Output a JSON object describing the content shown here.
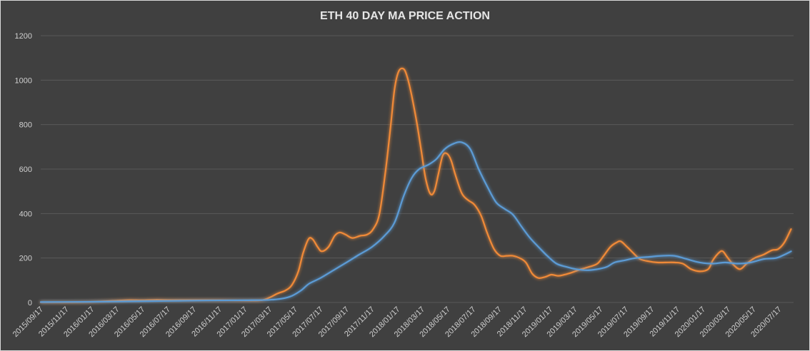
{
  "chart_data": {
    "type": "line",
    "title": "ETH 40 DAY MA PRICE ACTION",
    "xlabel": "",
    "ylabel": "",
    "ylim": [
      0,
      1200
    ],
    "y_ticks": [
      "0",
      "200",
      "400",
      "600",
      "800",
      "1000",
      "1200"
    ],
    "x_tick_labels": [
      "2015/09/17",
      "2015/11/17",
      "2016/01/17",
      "2016/03/17",
      "2016/05/17",
      "2016/07/17",
      "2016/09/17",
      "2016/11/17",
      "2017/01/17",
      "2017/03/17",
      "2017/05/17",
      "2017/07/17",
      "2017/09/17",
      "2017/11/17",
      "2018/01/17",
      "2018/03/17",
      "2018/05/17",
      "2018/07/17",
      "2018/09/17",
      "2018/11/17",
      "2019/01/17",
      "2019/03/17",
      "2019/05/17",
      "2019/07/17",
      "2019/09/17",
      "2019/11/17",
      "2020/01/17",
      "2020/03/17",
      "2020/05/17",
      "2020/07/17"
    ],
    "grid": true,
    "legend": "none",
    "series": [
      {
        "color": "#f08a38",
        "points": [
          [
            "2015/09/17",
            1
          ],
          [
            "2016/01/01",
            2
          ],
          [
            "2016/03/17",
            8
          ],
          [
            "2016/04/17",
            11
          ],
          [
            "2016/05/17",
            10
          ],
          [
            "2016/06/17",
            12
          ],
          [
            "2016/07/17",
            11
          ],
          [
            "2016/10/17",
            11
          ],
          [
            "2017/01/17",
            9
          ],
          [
            "2017/02/25",
            10
          ],
          [
            "2017/03/17",
            22
          ],
          [
            "2017/04/05",
            40
          ],
          [
            "2017/04/25",
            55
          ],
          [
            "2017/05/10",
            80
          ],
          [
            "2017/05/25",
            140
          ],
          [
            "2017/06/05",
            220
          ],
          [
            "2017/06/18",
            285
          ],
          [
            "2017/06/28",
            285
          ],
          [
            "2017/07/10",
            250
          ],
          [
            "2017/07/20",
            230
          ],
          [
            "2017/08/05",
            250
          ],
          [
            "2017/08/20",
            300
          ],
          [
            "2017/09/01",
            315
          ],
          [
            "2017/09/15",
            305
          ],
          [
            "2017/10/01",
            290
          ],
          [
            "2017/10/20",
            300
          ],
          [
            "2017/11/05",
            305
          ],
          [
            "2017/11/20",
            330
          ],
          [
            "2017/12/05",
            400
          ],
          [
            "2017/12/20",
            600
          ],
          [
            "2018/01/01",
            800
          ],
          [
            "2018/01/10",
            960
          ],
          [
            "2018/01/20",
            1040
          ],
          [
            "2018/02/01",
            1050
          ],
          [
            "2018/02/10",
            1010
          ],
          [
            "2018/02/20",
            930
          ],
          [
            "2018/03/05",
            800
          ],
          [
            "2018/03/15",
            680
          ],
          [
            "2018/03/25",
            560
          ],
          [
            "2018/04/05",
            490
          ],
          [
            "2018/04/15",
            500
          ],
          [
            "2018/04/25",
            580
          ],
          [
            "2018/05/05",
            660
          ],
          [
            "2018/05/15",
            670
          ],
          [
            "2018/05/25",
            640
          ],
          [
            "2018/06/05",
            570
          ],
          [
            "2018/06/20",
            490
          ],
          [
            "2018/07/05",
            460
          ],
          [
            "2018/07/20",
            440
          ],
          [
            "2018/08/05",
            390
          ],
          [
            "2018/08/20",
            310
          ],
          [
            "2018/09/05",
            240
          ],
          [
            "2018/09/20",
            210
          ],
          [
            "2018/10/05",
            210
          ],
          [
            "2018/10/20",
            210
          ],
          [
            "2018/11/05",
            200
          ],
          [
            "2018/11/20",
            180
          ],
          [
            "2018/12/05",
            130
          ],
          [
            "2018/12/20",
            110
          ],
          [
            "2019/01/05",
            115
          ],
          [
            "2019/01/20",
            125
          ],
          [
            "2019/02/05",
            120
          ],
          [
            "2019/02/20",
            125
          ],
          [
            "2019/03/10",
            135
          ],
          [
            "2019/04/01",
            150
          ],
          [
            "2019/04/20",
            160
          ],
          [
            "2019/05/10",
            175
          ],
          [
            "2019/05/25",
            210
          ],
          [
            "2019/06/10",
            250
          ],
          [
            "2019/06/25",
            270
          ],
          [
            "2019/07/05",
            275
          ],
          [
            "2019/07/20",
            250
          ],
          [
            "2019/08/05",
            220
          ],
          [
            "2019/08/20",
            195
          ],
          [
            "2019/09/10",
            185
          ],
          [
            "2019/09/30",
            180
          ],
          [
            "2019/10/20",
            180
          ],
          [
            "2019/11/10",
            180
          ],
          [
            "2019/11/30",
            175
          ],
          [
            "2019/12/20",
            150
          ],
          [
            "2020/01/10",
            140
          ],
          [
            "2020/01/30",
            150
          ],
          [
            "2020/02/10",
            190
          ],
          [
            "2020/02/25",
            225
          ],
          [
            "2020/03/05",
            230
          ],
          [
            "2020/03/15",
            205
          ],
          [
            "2020/03/30",
            170
          ],
          [
            "2020/04/15",
            150
          ],
          [
            "2020/05/01",
            175
          ],
          [
            "2020/05/20",
            200
          ],
          [
            "2020/06/10",
            215
          ],
          [
            "2020/06/30",
            235
          ],
          [
            "2020/07/15",
            240
          ],
          [
            "2020/07/30",
            270
          ],
          [
            "2020/08/15",
            330
          ]
        ]
      },
      {
        "color": "#5b9bd5",
        "points": [
          [
            "2015/09/17",
            2
          ],
          [
            "2016/01/01",
            3
          ],
          [
            "2016/04/17",
            5
          ],
          [
            "2016/07/17",
            7
          ],
          [
            "2016/10/17",
            9
          ],
          [
            "2017/01/17",
            10
          ],
          [
            "2017/03/17",
            12
          ],
          [
            "2017/04/17",
            18
          ],
          [
            "2017/05/10",
            30
          ],
          [
            "2017/06/01",
            55
          ],
          [
            "2017/06/20",
            85
          ],
          [
            "2017/07/17",
            110
          ],
          [
            "2017/08/17",
            145
          ],
          [
            "2017/09/17",
            180
          ],
          [
            "2017/10/17",
            215
          ],
          [
            "2017/11/17",
            250
          ],
          [
            "2017/12/17",
            300
          ],
          [
            "2018/01/10",
            360
          ],
          [
            "2018/02/01",
            480
          ],
          [
            "2018/02/20",
            560
          ],
          [
            "2018/03/10",
            600
          ],
          [
            "2018/04/01",
            620
          ],
          [
            "2018/04/20",
            645
          ],
          [
            "2018/05/10",
            690
          ],
          [
            "2018/06/01",
            715
          ],
          [
            "2018/06/20",
            720
          ],
          [
            "2018/07/10",
            690
          ],
          [
            "2018/07/30",
            600
          ],
          [
            "2018/08/20",
            520
          ],
          [
            "2018/09/10",
            450
          ],
          [
            "2018/10/01",
            420
          ],
          [
            "2018/10/20",
            395
          ],
          [
            "2018/11/10",
            340
          ],
          [
            "2018/11/30",
            290
          ],
          [
            "2018/12/20",
            250
          ],
          [
            "2019/01/10",
            210
          ],
          [
            "2019/02/01",
            175
          ],
          [
            "2019/02/25",
            160
          ],
          [
            "2019/03/20",
            150
          ],
          [
            "2019/04/15",
            145
          ],
          [
            "2019/05/10",
            150
          ],
          [
            "2019/06/01",
            160
          ],
          [
            "2019/06/20",
            180
          ],
          [
            "2019/07/15",
            190
          ],
          [
            "2019/08/10",
            200
          ],
          [
            "2019/09/10",
            205
          ],
          [
            "2019/10/10",
            210
          ],
          [
            "2019/11/10",
            210
          ],
          [
            "2019/12/10",
            195
          ],
          [
            "2020/01/10",
            180
          ],
          [
            "2020/02/10",
            175
          ],
          [
            "2020/03/10",
            180
          ],
          [
            "2020/04/10",
            175
          ],
          [
            "2020/05/10",
            180
          ],
          [
            "2020/06/10",
            195
          ],
          [
            "2020/07/10",
            200
          ],
          [
            "2020/07/30",
            215
          ],
          [
            "2020/08/15",
            230
          ]
        ]
      }
    ]
  }
}
